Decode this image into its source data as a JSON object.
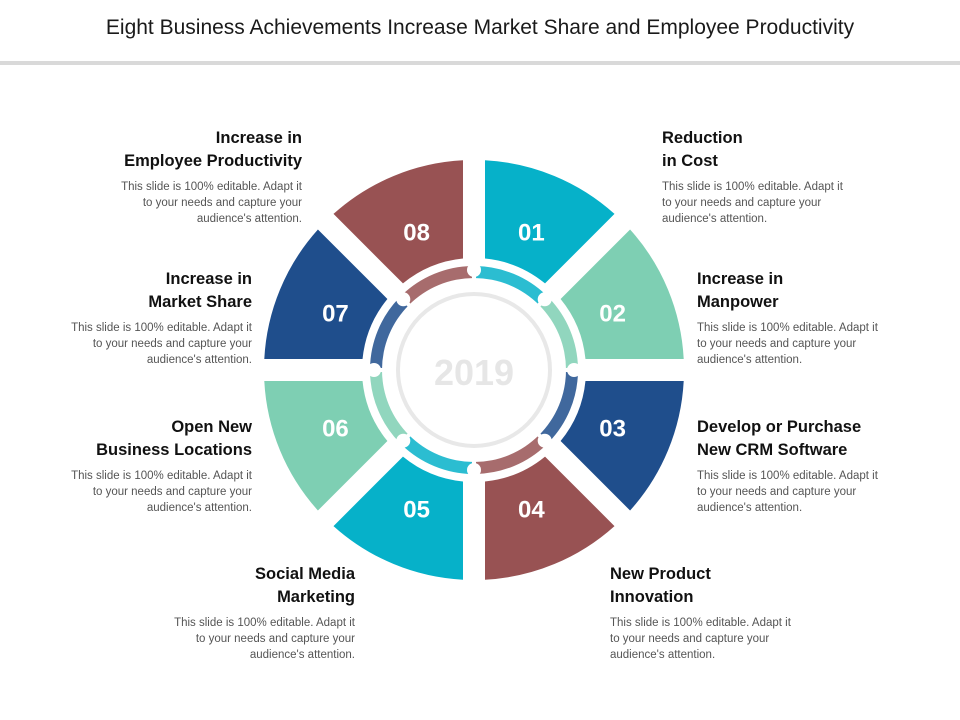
{
  "title": "Eight Business Achievements Increase Market Share and Employee Productivity",
  "center_label": "2019",
  "colors": {
    "teal": "#06b1c9",
    "mint": "#7ecfb3",
    "navy": "#1f4e8c",
    "maroon": "#985253",
    "center_ring": "#e8e8e8"
  },
  "segments": [
    {
      "number": "01",
      "color": "#06b1c9",
      "title": "Reduction\nin Cost",
      "description": "This slide is 100% editable. Adapt it\nto your needs and capture your\naudience's attention."
    },
    {
      "number": "02",
      "color": "#7ecfb3",
      "title": "Increase in\nManpower",
      "description": "This slide is 100% editable. Adapt it\nto your needs and capture your\naudience's attention."
    },
    {
      "number": "03",
      "color": "#1f4e8c",
      "title": "Develop or Purchase\nNew CRM Software",
      "description": "This slide is 100% editable. Adapt it\nto your needs and capture your\naudience's attention."
    },
    {
      "number": "04",
      "color": "#985253",
      "title": "New Product\nInnovation",
      "description": "This slide is 100% editable. Adapt it\nto your needs and capture your\naudience's attention."
    },
    {
      "number": "05",
      "color": "#06b1c9",
      "title": "Social Media\nMarketing",
      "description": "This slide is 100% editable. Adapt it\nto your needs and capture your\naudience's attention."
    },
    {
      "number": "06",
      "color": "#7ecfb3",
      "title": "Open New\nBusiness Locations",
      "description": "This slide is 100% editable. Adapt it\nto your needs and capture your\naudience's attention."
    },
    {
      "number": "07",
      "color": "#1f4e8c",
      "title": "Increase in\nMarket Share",
      "description": "This slide is 100% editable. Adapt it\nto your needs and capture your\naudience's attention."
    },
    {
      "number": "08",
      "color": "#985253",
      "title": "Increase in\nEmployee Productivity",
      "description": "This slide is 100% editable. Adapt it\nto your needs and capture your\naudience's attention."
    }
  ]
}
